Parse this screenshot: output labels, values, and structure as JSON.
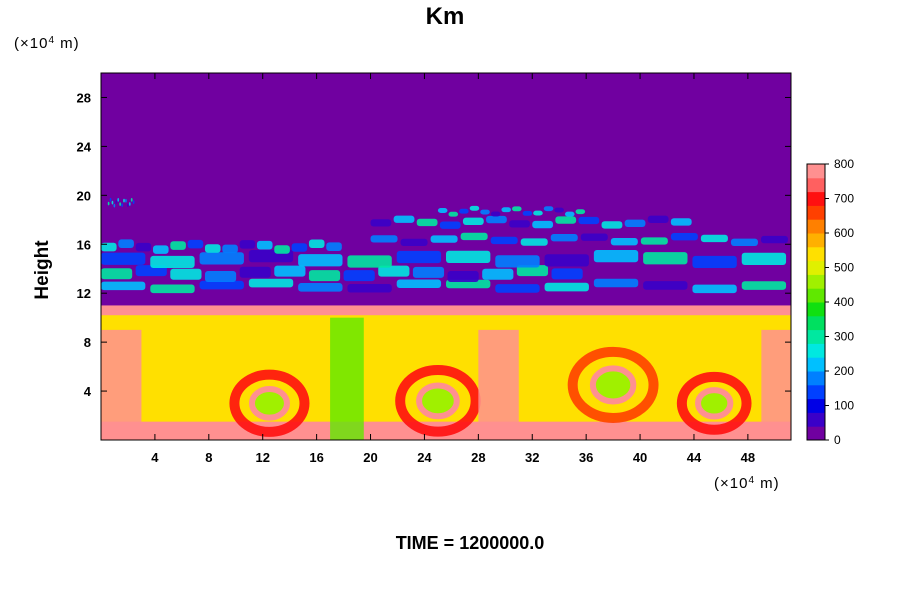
{
  "chart_data": {
    "type": "heatmap",
    "title": "Km",
    "ylabel": "Height",
    "xlabel": "",
    "x_unit": {
      "prefix": "(×10",
      "exp": "4",
      "suffix": " m)"
    },
    "y_unit": {
      "prefix": "(×10",
      "exp": "4",
      "suffix": " m)"
    },
    "xlim": [
      0,
      51.2
    ],
    "ylim": [
      0,
      30
    ],
    "xticks": [
      4,
      8,
      12,
      16,
      20,
      24,
      28,
      32,
      36,
      40,
      44,
      48
    ],
    "yticks": [
      4,
      8,
      12,
      16,
      20,
      24,
      28
    ],
    "colorbar": {
      "min": 0,
      "max": 800,
      "ticks": [
        0,
        100,
        200,
        300,
        400,
        500,
        600,
        700,
        800
      ],
      "colors": [
        "#7000a0",
        "#3a00c8",
        "#0000e6",
        "#0040ff",
        "#0080ff",
        "#00c0ff",
        "#00e8e0",
        "#00e8a0",
        "#00e060",
        "#10e010",
        "#60e800",
        "#a0f000",
        "#e0f000",
        "#ffe000",
        "#ffb000",
        "#ff8000",
        "#ff4000",
        "#ff1010",
        "#ff6060",
        "#ff9090"
      ]
    },
    "field_summary": [
      {
        "y_range": [
          0,
          10.5
        ],
        "description": "values 300-800, large eddies",
        "level": 520
      },
      {
        "y_range": [
          10.5,
          11.2
        ],
        "description": "sharp front near 10.5",
        "level": 780
      },
      {
        "y_range": [
          11.2,
          20
        ],
        "description": "patchy bands 0-400",
        "level": 150
      },
      {
        "y_range": [
          20,
          30
        ],
        "description": "near zero",
        "level": 0
      }
    ],
    "footer": "TIME = 1200000.0"
  }
}
